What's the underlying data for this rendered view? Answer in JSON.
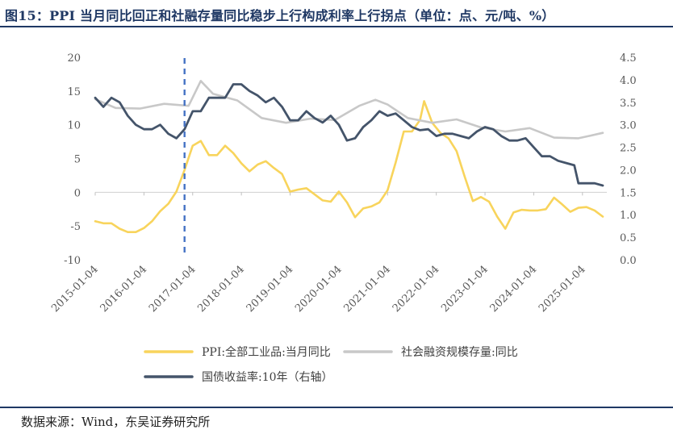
{
  "figure_title": "图15：PPI 当月同比回正和社融存量同比稳步上行构成利率上行拐点（单位：点、元/吨、%）",
  "source": "数据来源：Wind，东吴证券研究所",
  "colors": {
    "ppi": "#f8d45c",
    "social": "#c8c8c8",
    "bond": "#44546a",
    "marker": "#4472c4",
    "header": "#1f3864"
  },
  "chart_data": {
    "type": "line",
    "title": "",
    "xlabel": "",
    "ylabel": "",
    "x_ticks": [
      "2015-01-04",
      "2016-01-04",
      "2017-01-04",
      "2018-01-04",
      "2019-01-04",
      "2020-01-04",
      "2021-01-04",
      "2022-01-04",
      "2023-01-04",
      "2024-01-04",
      "2025-01-04"
    ],
    "y_left": {
      "min": -10,
      "max": 20,
      "ticks": [
        -10,
        -5,
        0,
        5,
        10,
        15,
        20
      ]
    },
    "y_right": {
      "min": 0,
      "max": 4.5,
      "ticks": [
        "0.0",
        "0.5",
        "1.0",
        "1.5",
        "2.0",
        "2.5",
        "3.0",
        "3.5",
        "4.0",
        "4.5"
      ]
    },
    "vertical_marker_x": "2016-11",
    "legend_position": "bottom",
    "series": [
      {
        "name": "PPI:全部工业品:当月同比",
        "axis": "left",
        "x": [
          "2015-01",
          "2015-03",
          "2015-05",
          "2015-07",
          "2015-09",
          "2015-11",
          "2016-01",
          "2016-03",
          "2016-05",
          "2016-07",
          "2016-09",
          "2016-11",
          "2017-01",
          "2017-03",
          "2017-05",
          "2017-07",
          "2017-09",
          "2017-11",
          "2018-01",
          "2018-03",
          "2018-05",
          "2018-07",
          "2018-09",
          "2018-11",
          "2019-01",
          "2019-03",
          "2019-05",
          "2019-07",
          "2019-09",
          "2019-11",
          "2020-01",
          "2020-03",
          "2020-05",
          "2020-07",
          "2020-09",
          "2020-11",
          "2021-01",
          "2021-03",
          "2021-05",
          "2021-07",
          "2021-09",
          "2021-10",
          "2021-12",
          "2022-02",
          "2022-04",
          "2022-06",
          "2022-08",
          "2022-10",
          "2022-12",
          "2023-02",
          "2023-04",
          "2023-06",
          "2023-08",
          "2023-10",
          "2023-12",
          "2024-02",
          "2024-04",
          "2024-06",
          "2024-08",
          "2024-10",
          "2024-12",
          "2025-02",
          "2025-04",
          "2025-06"
        ],
        "y": [
          -4.3,
          -4.6,
          -4.6,
          -5.4,
          -5.9,
          -5.9,
          -5.3,
          -4.3,
          -2.8,
          -1.7,
          0.1,
          3.3,
          6.9,
          7.6,
          5.5,
          5.5,
          6.9,
          5.8,
          4.3,
          3.1,
          4.1,
          4.6,
          3.6,
          2.7,
          0.1,
          0.4,
          0.6,
          -0.3,
          -1.2,
          -1.4,
          0.1,
          -1.5,
          -3.7,
          -2.4,
          -2.1,
          -1.5,
          0.3,
          4.4,
          9.0,
          9.0,
          10.7,
          13.5,
          10.3,
          8.8,
          8.0,
          6.1,
          2.3,
          -1.3,
          -0.7,
          -1.4,
          -3.6,
          -5.4,
          -3.0,
          -2.6,
          -2.7,
          -2.7,
          -2.5,
          -0.8,
          -1.8,
          -2.9,
          -2.3,
          -2.2,
          -2.7,
          -3.6
        ]
      },
      {
        "name": "社会融资规模存量:同比",
        "axis": "left",
        "x": [
          "2015-01",
          "2015-06",
          "2015-12",
          "2016-06",
          "2016-12",
          "2017-03",
          "2017-06",
          "2017-12",
          "2018-06",
          "2018-12",
          "2019-06",
          "2019-12",
          "2020-06",
          "2020-10",
          "2021-01",
          "2021-06",
          "2021-12",
          "2022-06",
          "2022-12",
          "2023-06",
          "2023-12",
          "2024-06",
          "2024-12",
          "2025-03",
          "2025-06"
        ],
        "y": [
          13.8,
          12.5,
          12.4,
          13.1,
          12.8,
          16.5,
          14.6,
          13.6,
          11.0,
          10.3,
          10.9,
          10.7,
          12.8,
          13.7,
          13.0,
          11.0,
          10.3,
          10.8,
          9.6,
          9.0,
          9.5,
          8.1,
          8.0,
          8.4,
          8.8
        ]
      },
      {
        "name": "国债收益率:10年（右轴）",
        "axis": "right",
        "x": [
          "2015-01",
          "2015-03",
          "2015-05",
          "2015-07",
          "2015-09",
          "2015-11",
          "2016-01",
          "2016-03",
          "2016-05",
          "2016-07",
          "2016-09",
          "2016-11",
          "2017-01",
          "2017-03",
          "2017-05",
          "2017-07",
          "2017-09",
          "2017-11",
          "2018-01",
          "2018-03",
          "2018-05",
          "2018-07",
          "2018-09",
          "2018-11",
          "2019-01",
          "2019-03",
          "2019-05",
          "2019-07",
          "2019-09",
          "2019-11",
          "2020-01",
          "2020-03",
          "2020-05",
          "2020-07",
          "2020-09",
          "2020-11",
          "2021-01",
          "2021-03",
          "2021-05",
          "2021-07",
          "2021-09",
          "2021-11",
          "2022-01",
          "2022-03",
          "2022-05",
          "2022-07",
          "2022-09",
          "2022-11",
          "2023-01",
          "2023-03",
          "2023-05",
          "2023-07",
          "2023-09",
          "2023-11",
          "2024-01",
          "2024-03",
          "2024-05",
          "2024-07",
          "2024-09",
          "2024-11",
          "2024-12",
          "2025-02",
          "2025-04",
          "2025-06"
        ],
        "y": [
          3.6,
          3.4,
          3.6,
          3.5,
          3.2,
          3.0,
          2.9,
          2.9,
          3.0,
          2.8,
          2.7,
          2.9,
          3.3,
          3.3,
          3.6,
          3.6,
          3.6,
          3.9,
          3.9,
          3.75,
          3.65,
          3.5,
          3.6,
          3.4,
          3.1,
          3.1,
          3.3,
          3.15,
          3.05,
          3.2,
          3.0,
          2.65,
          2.7,
          2.95,
          3.1,
          3.3,
          3.2,
          3.25,
          3.1,
          2.95,
          2.88,
          2.9,
          2.75,
          2.8,
          2.8,
          2.75,
          2.7,
          2.85,
          2.95,
          2.9,
          2.75,
          2.65,
          2.65,
          2.7,
          2.5,
          2.3,
          2.3,
          2.2,
          2.15,
          2.1,
          1.7,
          1.7,
          1.7,
          1.65
        ]
      }
    ]
  }
}
